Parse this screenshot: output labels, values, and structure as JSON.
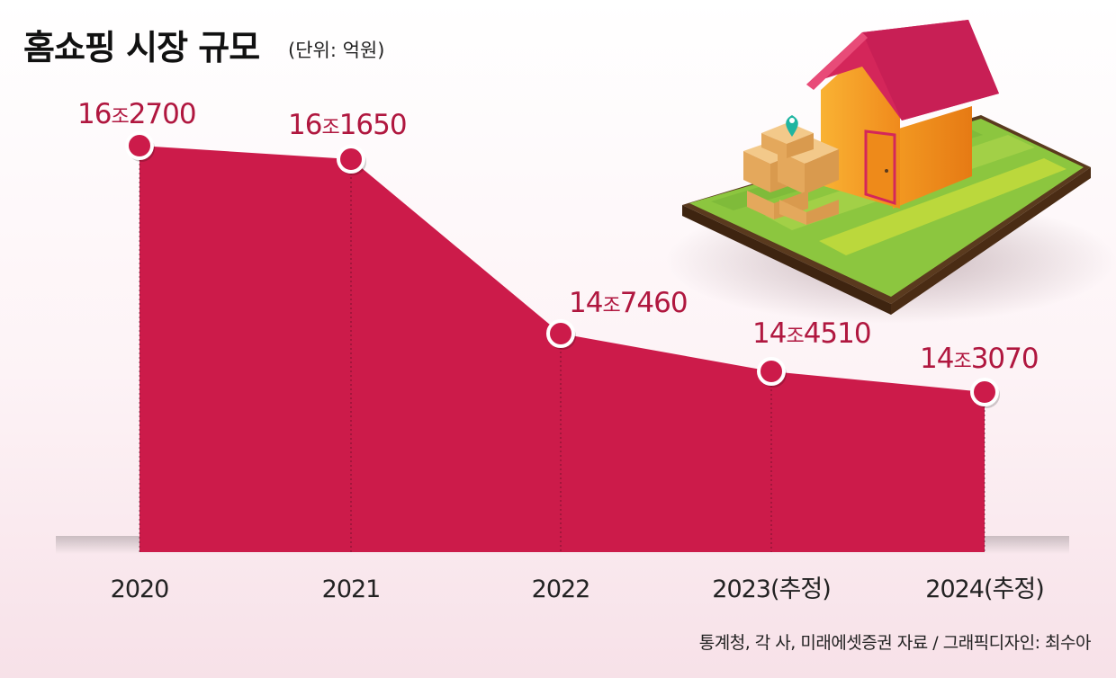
{
  "header": {
    "title": "홈쇼핑 시장 규모",
    "unit": "(단위: 억원)"
  },
  "chart_data": {
    "type": "area",
    "categories": [
      "2020",
      "2021",
      "2022",
      "2023(추정)",
      "2024(추정)"
    ],
    "values": [
      162700,
      161650,
      147460,
      144510,
      143070
    ],
    "value_labels": [
      {
        "major": "16",
        "mid": "조",
        "minor": "2700"
      },
      {
        "major": "16",
        "mid": "조",
        "minor": "1650"
      },
      {
        "major": "14",
        "mid": "조",
        "minor": "7460"
      },
      {
        "major": "14",
        "mid": "조",
        "minor": "4510"
      },
      {
        "major": "14",
        "mid": "조",
        "minor": "3070"
      }
    ],
    "title": "홈쇼핑 시장 규모",
    "ylabel": "",
    "xlabel": "",
    "grid": false,
    "legend": "none"
  },
  "footer": {
    "source": "통계청, 각 사, 미래에셋증권 자료 / 그래픽디자인: 최수아"
  },
  "illustration": {
    "subject": "house-with-parcels-icon"
  },
  "colors": {
    "area": "#cc1b4a",
    "label": "#b0173f",
    "axis_text": "#222222",
    "roof": "#d4265a",
    "wall": "#f5a623",
    "grass": "#8cc63f"
  }
}
